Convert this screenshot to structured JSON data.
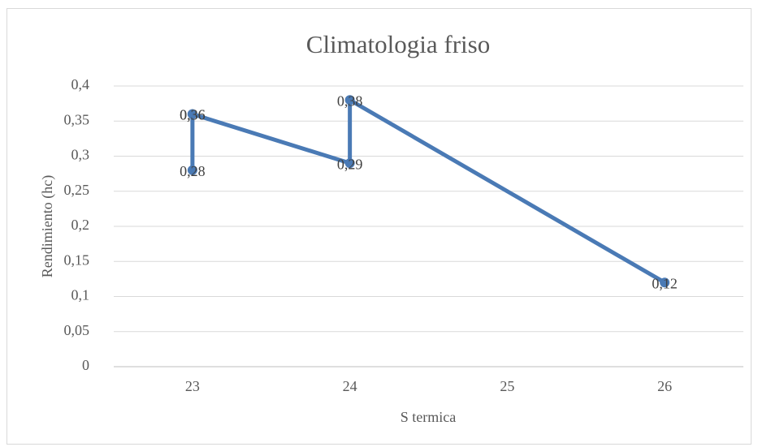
{
  "chart_data": {
    "type": "line",
    "title": "Climatologia friso",
    "x_label": "S termica",
    "y_label": "Rendimiento (hc)",
    "x": [
      23,
      23,
      23,
      24,
      24,
      26
    ],
    "series": [
      {
        "name": "Rendimiento (hc)",
        "color": "#4a7ab5",
        "values": [
          0.36,
          0.28,
          0.36,
          0.29,
          0.38,
          0.12
        ],
        "value_labels": [
          "0,36",
          "0,28",
          "0,36",
          "0,29",
          "0,38",
          "0,12"
        ]
      }
    ],
    "xlim": [
      22.5,
      26.5
    ],
    "xticks": [
      23,
      24,
      25,
      26
    ],
    "ylim": [
      0,
      0.4
    ],
    "yticks": [
      0,
      {
        "value": 0.05,
        "label": "0,05"
      },
      {
        "value": 0.1,
        "label": "0,1"
      },
      {
        "value": 0.15,
        "label": "0,15"
      },
      {
        "value": 0.2,
        "label": "0,2"
      },
      {
        "value": 0.25,
        "label": "0,25"
      },
      {
        "value": 0.3,
        "label": "0,3"
      },
      {
        "value": 0.35,
        "label": "0,35"
      },
      {
        "value": 0.4,
        "label": "0,4"
      }
    ],
    "grid": true,
    "legend": false
  }
}
